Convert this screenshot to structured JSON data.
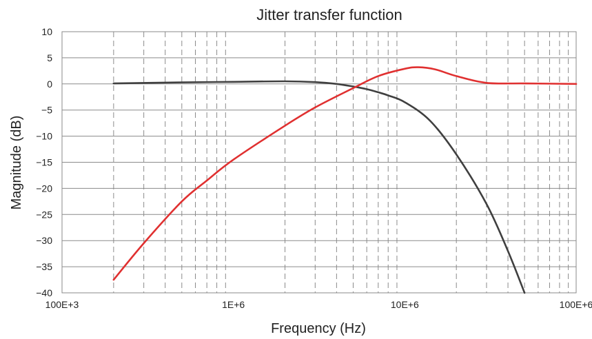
{
  "chart_data": {
    "type": "line",
    "title": "Jitter transfer function",
    "xlabel": "Frequency (Hz)",
    "ylabel": "Magnitude (dB)",
    "xscale": "log",
    "xlim": [
      100000,
      100000000
    ],
    "ylim": [
      -40,
      10
    ],
    "x_ticks": [
      {
        "value": 100000,
        "label": "100E+3"
      },
      {
        "value": 1000000,
        "label": "1E+6"
      },
      {
        "value": 10000000,
        "label": "10E+6"
      },
      {
        "value": 100000000,
        "label": "100E+6"
      }
    ],
    "y_ticks": [
      10,
      5,
      0,
      -5,
      -10,
      -15,
      -20,
      -25,
      -30,
      -35,
      -40
    ],
    "y_tick_labels": [
      "10",
      "5",
      "0",
      "−5",
      "−10",
      "−15",
      "−20",
      "−25",
      "−30",
      "−35",
      "−40"
    ],
    "grid": "horizontal solid at y ticks, vertical dashed at log minor ticks",
    "series": [
      {
        "color": "#3f3f3f",
        "x": [
          200000,
          500000,
          1000000,
          2000000,
          3000000,
          4000000,
          5000000,
          6000000,
          7000000,
          8000000,
          10000000,
          14000000,
          20000000,
          30000000,
          40000000,
          50000000
        ],
        "values": [
          0.1,
          0.3,
          0.4,
          0.5,
          0.35,
          0.0,
          -0.5,
          -1.0,
          -1.6,
          -2.2,
          -3.5,
          -7.0,
          -13.5,
          -23.0,
          -32.0,
          -40.0
        ]
      },
      {
        "color": "#e03030",
        "x": [
          200000,
          300000,
          500000,
          700000,
          1000000,
          2000000,
          3000000,
          5000000,
          7000000,
          10000000,
          12000000,
          15000000,
          20000000,
          30000000,
          50000000,
          100000000
        ],
        "values": [
          -37.5,
          -30.5,
          -22.5,
          -18.5,
          -14.5,
          -8.0,
          -4.5,
          -0.8,
          1.5,
          2.9,
          3.2,
          2.8,
          1.5,
          0.2,
          0.1,
          0.0
        ]
      }
    ]
  }
}
